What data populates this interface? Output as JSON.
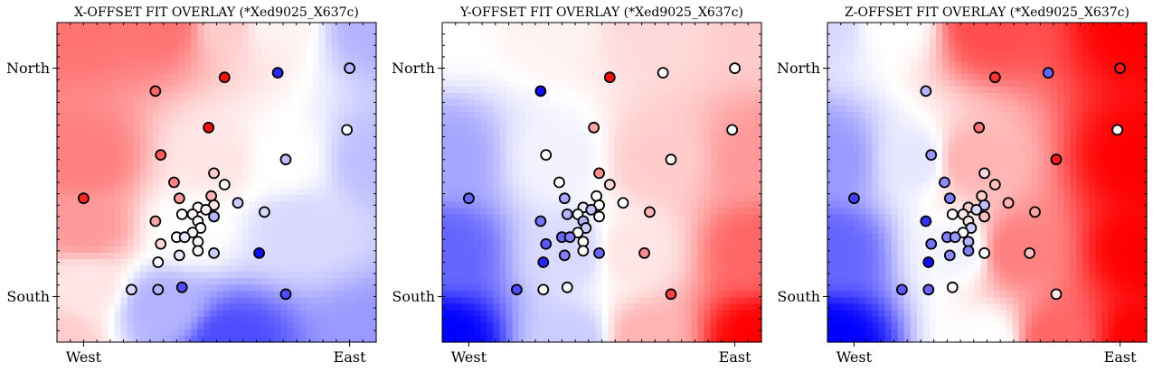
{
  "chart_data": [
    {
      "type": "scatter",
      "title": "X-OFFSET FIT OVERLAY (*Xed9025_X637c)",
      "x_ticks": [
        {
          "value": 0.0,
          "label": "West"
        },
        {
          "value": 1.0,
          "label": "East"
        }
      ],
      "y_ticks": [
        {
          "value": 1.0,
          "label": "North"
        },
        {
          "value": 0.0,
          "label": "South"
        }
      ],
      "xlim": [
        -0.1,
        1.1
      ],
      "ylim": [
        -0.2,
        1.2
      ],
      "background": {
        "type": "fitted-gradient",
        "low_color": "#0000ff",
        "mid_color": "#ffffff",
        "high_color": "#ff0000",
        "field": [
          [
            0.0,
            1.2,
            0.55
          ],
          [
            0.3,
            1.2,
            0.55
          ],
          [
            0.55,
            1.2,
            0.2
          ],
          [
            0.7,
            1.2,
            0.05
          ],
          [
            1.1,
            1.2,
            -0.3
          ],
          [
            0.0,
            0.6,
            0.5
          ],
          [
            0.5,
            0.6,
            0.1
          ],
          [
            0.75,
            0.6,
            0.0
          ],
          [
            1.1,
            0.6,
            -0.25
          ],
          [
            0.0,
            0.3,
            0.4
          ],
          [
            0.4,
            0.3,
            0.0
          ],
          [
            0.8,
            0.3,
            -0.15
          ],
          [
            0.0,
            0.05,
            0.1
          ],
          [
            0.3,
            -0.05,
            -0.3
          ],
          [
            0.55,
            -0.2,
            -0.7
          ],
          [
            1.1,
            -0.2,
            -0.4
          ],
          [
            -0.1,
            -0.2,
            0.2
          ]
        ]
      },
      "points": [
        [
          0.0,
          0.43,
          0.85
        ],
        [
          0.27,
          0.9,
          0.6
        ],
        [
          0.53,
          0.96,
          0.95
        ],
        [
          0.73,
          0.98,
          -0.85
        ],
        [
          1.0,
          1.0,
          -0.3
        ],
        [
          0.47,
          0.74,
          0.95
        ],
        [
          0.99,
          0.73,
          0.0
        ],
        [
          0.29,
          0.62,
          0.65
        ],
        [
          0.76,
          0.6,
          -0.25
        ],
        [
          0.34,
          0.5,
          0.5
        ],
        [
          0.49,
          0.54,
          0.2
        ],
        [
          0.53,
          0.49,
          0.0
        ],
        [
          0.36,
          0.43,
          0.4
        ],
        [
          0.48,
          0.44,
          0.3
        ],
        [
          0.49,
          0.4,
          0.1
        ],
        [
          0.58,
          0.41,
          -0.2
        ],
        [
          0.68,
          0.37,
          -0.15
        ],
        [
          0.43,
          0.39,
          0.0
        ],
        [
          0.46,
          0.38,
          0.05
        ],
        [
          0.37,
          0.36,
          0.0
        ],
        [
          0.41,
          0.36,
          0.05
        ],
        [
          0.49,
          0.35,
          -0.3
        ],
        [
          0.27,
          0.33,
          0.35
        ],
        [
          0.43,
          0.33,
          0.0
        ],
        [
          0.44,
          0.3,
          0.0
        ],
        [
          0.41,
          0.28,
          0.0
        ],
        [
          0.35,
          0.26,
          0.0
        ],
        [
          0.38,
          0.26,
          -0.1
        ],
        [
          0.43,
          0.24,
          0.0
        ],
        [
          0.29,
          0.23,
          0.15
        ],
        [
          0.43,
          0.2,
          0.0
        ],
        [
          0.49,
          0.19,
          -0.2
        ],
        [
          0.36,
          0.18,
          -0.1
        ],
        [
          0.66,
          0.19,
          -0.95
        ],
        [
          0.28,
          0.15,
          0.0
        ],
        [
          0.18,
          0.03,
          -0.15
        ],
        [
          0.28,
          0.03,
          -0.3
        ],
        [
          0.37,
          0.04,
          -0.7
        ],
        [
          0.76,
          0.01,
          -0.7
        ]
      ]
    },
    {
      "type": "scatter",
      "title": "Y-OFFSET FIT OVERLAY (*Xed9025_X637c)",
      "x_ticks": [
        {
          "value": 0.0,
          "label": "West"
        },
        {
          "value": 1.0,
          "label": "East"
        }
      ],
      "y_ticks": [
        {
          "value": 1.0,
          "label": "North"
        },
        {
          "value": 0.0,
          "label": "South"
        }
      ],
      "xlim": [
        -0.1,
        1.1
      ],
      "ylim": [
        -0.2,
        1.2
      ],
      "background": {
        "type": "fitted-gradient",
        "low_color": "#0000ff",
        "mid_color": "#ffffff",
        "high_color": "#ff0000",
        "field": [
          [
            -0.1,
            1.2,
            0.0
          ],
          [
            0.3,
            1.2,
            0.05
          ],
          [
            0.7,
            1.2,
            0.15
          ],
          [
            1.1,
            1.2,
            0.2
          ],
          [
            -0.1,
            0.6,
            -0.35
          ],
          [
            0.35,
            0.6,
            -0.05
          ],
          [
            0.7,
            0.6,
            0.2
          ],
          [
            1.1,
            0.6,
            0.4
          ],
          [
            -0.1,
            0.2,
            -0.6
          ],
          [
            0.4,
            0.2,
            -0.15
          ],
          [
            0.6,
            0.2,
            0.1
          ],
          [
            1.1,
            0.2,
            0.6
          ],
          [
            -0.1,
            -0.2,
            -1.0
          ],
          [
            0.4,
            -0.2,
            -0.2
          ],
          [
            0.65,
            -0.2,
            0.3
          ],
          [
            1.1,
            -0.2,
            1.0
          ]
        ]
      },
      "points": [
        [
          0.0,
          0.43,
          -0.6
        ],
        [
          0.27,
          0.9,
          -0.95
        ],
        [
          0.53,
          0.96,
          0.95
        ],
        [
          0.73,
          0.98,
          0.0
        ],
        [
          1.0,
          1.0,
          0.0
        ],
        [
          0.47,
          0.74,
          0.35
        ],
        [
          0.99,
          0.73,
          0.0
        ],
        [
          0.29,
          0.62,
          0.0
        ],
        [
          0.76,
          0.6,
          0.0
        ],
        [
          0.34,
          0.5,
          0.0
        ],
        [
          0.49,
          0.54,
          0.45
        ],
        [
          0.53,
          0.49,
          0.15
        ],
        [
          0.36,
          0.43,
          -0.35
        ],
        [
          0.48,
          0.44,
          0.0
        ],
        [
          0.49,
          0.4,
          0.0
        ],
        [
          0.58,
          0.41,
          0.0
        ],
        [
          0.68,
          0.37,
          0.3
        ],
        [
          0.43,
          0.39,
          -0.1
        ],
        [
          0.46,
          0.38,
          -0.25
        ],
        [
          0.37,
          0.36,
          -0.3
        ],
        [
          0.41,
          0.36,
          0.0
        ],
        [
          0.49,
          0.35,
          0.0
        ],
        [
          0.27,
          0.33,
          -0.55
        ],
        [
          0.43,
          0.33,
          -0.3
        ],
        [
          0.44,
          0.3,
          -0.2
        ],
        [
          0.41,
          0.28,
          0.0
        ],
        [
          0.35,
          0.26,
          -0.6
        ],
        [
          0.38,
          0.26,
          -0.5
        ],
        [
          0.43,
          0.24,
          0.0
        ],
        [
          0.29,
          0.23,
          -0.65
        ],
        [
          0.43,
          0.2,
          0.0
        ],
        [
          0.49,
          0.19,
          -0.6
        ],
        [
          0.36,
          0.18,
          -0.5
        ],
        [
          0.66,
          0.19,
          0.45
        ],
        [
          0.28,
          0.15,
          -0.85
        ],
        [
          0.18,
          0.03,
          -0.7
        ],
        [
          0.28,
          0.03,
          0.0
        ],
        [
          0.37,
          0.04,
          0.0
        ],
        [
          0.76,
          0.01,
          0.75
        ]
      ]
    },
    {
      "type": "scatter",
      "title": "Z-OFFSET FIT OVERLAY (*Xed9025_X637c)",
      "x_ticks": [
        {
          "value": 0.0,
          "label": "West"
        },
        {
          "value": 1.0,
          "label": "East"
        }
      ],
      "y_ticks": [
        {
          "value": 1.0,
          "label": "North"
        },
        {
          "value": 0.0,
          "label": "South"
        }
      ],
      "xlim": [
        -0.1,
        1.1
      ],
      "ylim": [
        -0.2,
        1.2
      ],
      "background": {
        "type": "fitted-gradient",
        "low_color": "#0000ff",
        "mid_color": "#ffffff",
        "high_color": "#ff0000",
        "field": [
          [
            -0.1,
            1.2,
            -0.15
          ],
          [
            0.15,
            1.2,
            0.0
          ],
          [
            0.5,
            1.2,
            0.7
          ],
          [
            1.1,
            1.2,
            1.0
          ],
          [
            -0.1,
            0.6,
            -0.4
          ],
          [
            0.25,
            0.6,
            -0.1
          ],
          [
            0.42,
            0.6,
            0.3
          ],
          [
            1.1,
            0.6,
            1.0
          ],
          [
            -0.1,
            0.2,
            -0.6
          ],
          [
            0.4,
            0.2,
            -0.05
          ],
          [
            0.6,
            0.2,
            0.5
          ],
          [
            1.1,
            0.2,
            1.0
          ],
          [
            -0.1,
            -0.2,
            -1.0
          ],
          [
            0.5,
            -0.2,
            0.0
          ],
          [
            0.75,
            -0.2,
            0.6
          ],
          [
            1.1,
            -0.2,
            1.0
          ]
        ]
      },
      "points": [
        [
          0.0,
          0.43,
          -0.75
        ],
        [
          0.27,
          0.9,
          -0.3
        ],
        [
          0.53,
          0.96,
          0.8
        ],
        [
          0.73,
          0.98,
          -0.6
        ],
        [
          1.0,
          1.0,
          0.9
        ],
        [
          0.47,
          0.74,
          0.55
        ],
        [
          0.99,
          0.73,
          0.0
        ],
        [
          0.29,
          0.62,
          -0.4
        ],
        [
          0.76,
          0.6,
          0.9
        ],
        [
          0.34,
          0.5,
          -0.45
        ],
        [
          0.49,
          0.54,
          0.15
        ],
        [
          0.53,
          0.49,
          0.25
        ],
        [
          0.36,
          0.43,
          -0.5
        ],
        [
          0.48,
          0.44,
          0.2
        ],
        [
          0.49,
          0.4,
          -0.25
        ],
        [
          0.58,
          0.41,
          0.3
        ],
        [
          0.68,
          0.37,
          0.35
        ],
        [
          0.43,
          0.39,
          0.2
        ],
        [
          0.46,
          0.38,
          -0.15
        ],
        [
          0.37,
          0.36,
          0.0
        ],
        [
          0.41,
          0.36,
          0.1
        ],
        [
          0.49,
          0.35,
          0.25
        ],
        [
          0.27,
          0.33,
          -0.8
        ],
        [
          0.43,
          0.33,
          0.1
        ],
        [
          0.44,
          0.3,
          -0.2
        ],
        [
          0.41,
          0.28,
          0.0
        ],
        [
          0.35,
          0.26,
          -0.5
        ],
        [
          0.38,
          0.26,
          -0.4
        ],
        [
          0.43,
          0.24,
          -0.3
        ],
        [
          0.29,
          0.23,
          -0.55
        ],
        [
          0.43,
          0.2,
          -0.5
        ],
        [
          0.49,
          0.19,
          0.0
        ],
        [
          0.36,
          0.18,
          -0.45
        ],
        [
          0.66,
          0.19,
          0.25
        ],
        [
          0.28,
          0.15,
          -0.95
        ],
        [
          0.18,
          0.03,
          -0.65
        ],
        [
          0.28,
          0.03,
          -0.6
        ],
        [
          0.37,
          0.04,
          0.0
        ],
        [
          0.76,
          0.01,
          0.1
        ]
      ]
    }
  ]
}
